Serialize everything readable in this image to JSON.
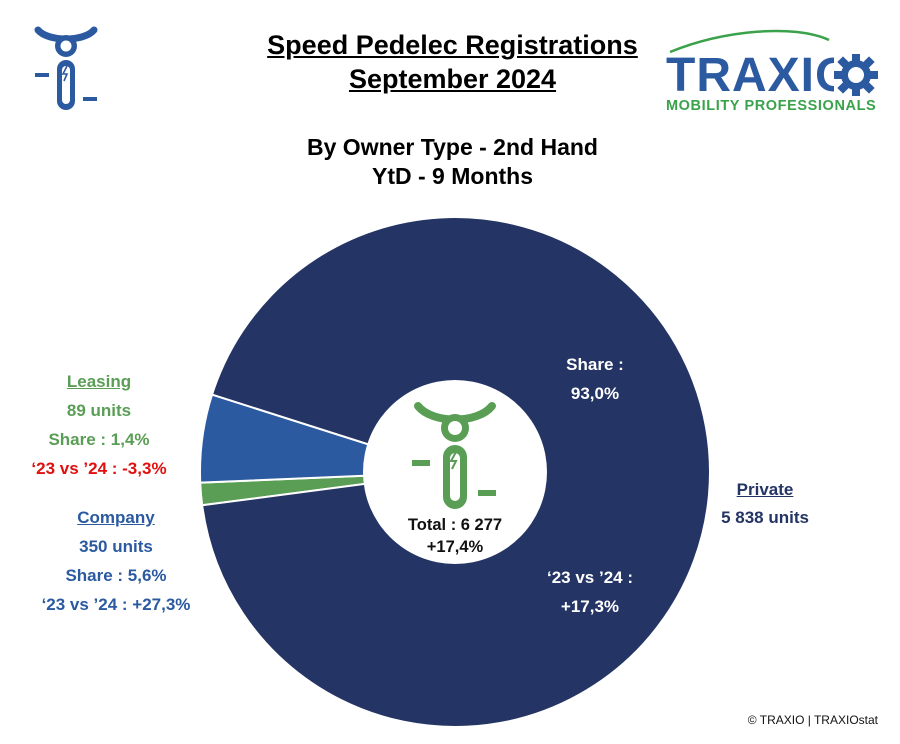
{
  "header": {
    "title_line1": "Speed Pedelec Registrations",
    "title_line2": "September 2024",
    "subtitle_line1": "By Owner Type - 2nd Hand",
    "subtitle_line2": "YtD - 9 Months"
  },
  "logo": {
    "brand": "TRAXIO",
    "tagline": "MOBILITY PROFESSIONALS",
    "icon": "speed-pedelec-icon"
  },
  "chart_data": {
    "type": "pie",
    "title": "By Owner Type - 2nd Hand",
    "series": [
      {
        "name": "Private",
        "value": 5838,
        "share": 93.0,
        "color": "#243464"
      },
      {
        "name": "Company",
        "value": 350,
        "share": 5.6,
        "color": "#2b5aa0"
      },
      {
        "name": "Leasing",
        "value": 89,
        "share": 1.4,
        "color": "#5a9e56"
      }
    ],
    "center_label": {
      "total": "Total : 6 277",
      "growth": "+17,4%"
    }
  },
  "labels": {
    "leasing": {
      "name": "Leasing",
      "units": "89 units",
      "share": "Share : 1,4%",
      "change": "‘23 vs ’24 : -3,3%"
    },
    "company": {
      "name": "Company",
      "units": "350 units",
      "share": "Share : 5,6%",
      "change": "‘23 vs ’24 : +27,3%"
    },
    "private": {
      "name": "Private",
      "units": "5 838 units",
      "share_label": "Share :",
      "share_value": "93,0%",
      "change_label": "‘23 vs ’24 :",
      "change_value": "+17,3%"
    }
  },
  "footer": {
    "copyright": "© TRAXIO | TRAXIOstat"
  },
  "colors": {
    "private": "#243464",
    "company": "#2b5aa0",
    "leasing": "#5a9e56",
    "negative": "#e01010",
    "brand_blue": "#2c5aa0",
    "brand_green": "#3aa24a"
  }
}
